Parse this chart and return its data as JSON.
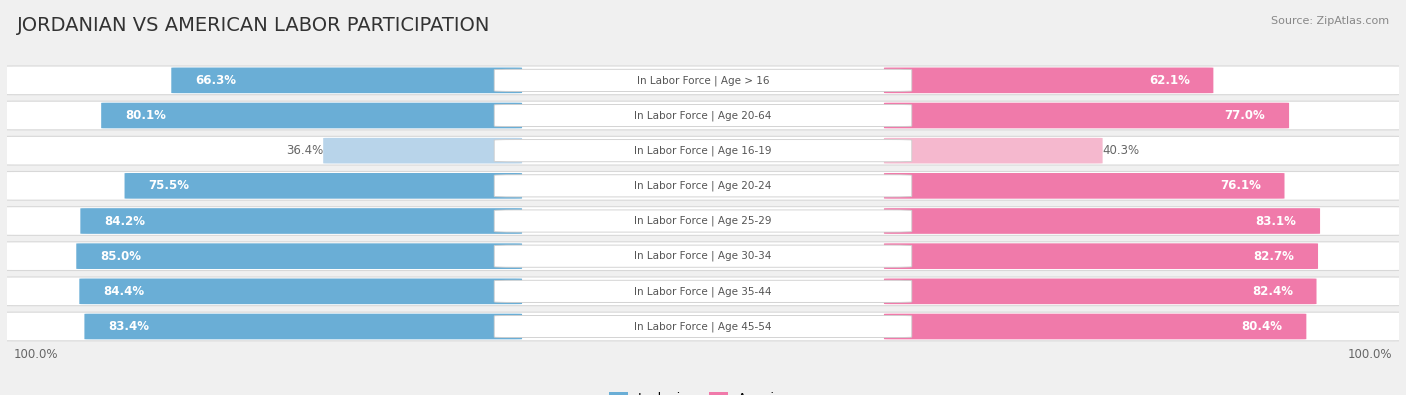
{
  "title": "JORDANIAN VS AMERICAN LABOR PARTICIPATION",
  "source": "Source: ZipAtlas.com",
  "categories": [
    "In Labor Force | Age > 16",
    "In Labor Force | Age 20-64",
    "In Labor Force | Age 16-19",
    "In Labor Force | Age 20-24",
    "In Labor Force | Age 25-29",
    "In Labor Force | Age 30-34",
    "In Labor Force | Age 35-44",
    "In Labor Force | Age 45-54"
  ],
  "jordanian": [
    66.3,
    80.1,
    36.4,
    75.5,
    84.2,
    85.0,
    84.4,
    83.4
  ],
  "american": [
    62.1,
    77.0,
    40.3,
    76.1,
    83.1,
    82.7,
    82.4,
    80.4
  ],
  "max_val": 100.0,
  "jordanian_color": "#6aaed6",
  "jordanian_color_light": "#b8d4ea",
  "american_color": "#f07aaa",
  "american_color_light": "#f5b8ce",
  "row_bg_color": "#ffffff",
  "row_border_color": "#d8d8d8",
  "background_color": "#f0f0f0",
  "label_bg": "#ffffff",
  "label_fontsize": 8.5,
  "title_fontsize": 14,
  "source_fontsize": 8,
  "legend_fontsize": 9,
  "axis_fontsize": 8.5,
  "center_label_color": "#555555",
  "value_label_color_dark": "#ffffff",
  "value_label_color_light": "#666666"
}
